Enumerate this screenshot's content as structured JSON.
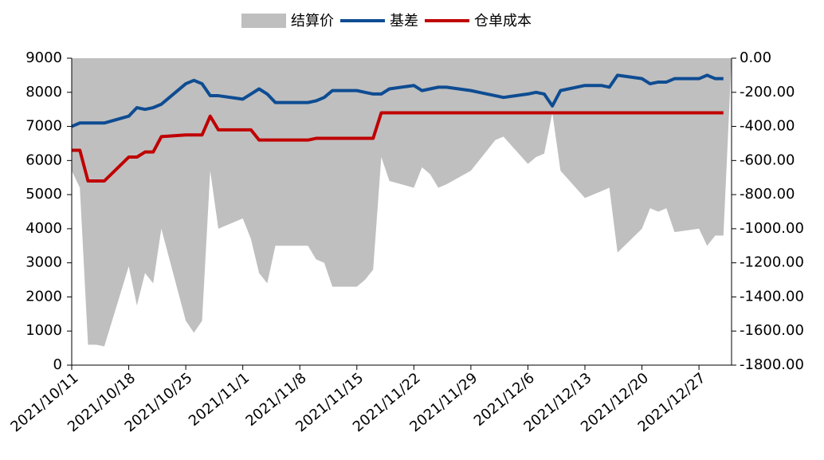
{
  "chart_data": {
    "type": "line",
    "legend": "top",
    "x": [
      "2021/10/11",
      "2021/10/12",
      "2021/10/13",
      "2021/10/14",
      "2021/10/15",
      "2021/10/18",
      "2021/10/19",
      "2021/10/20",
      "2021/10/21",
      "2021/10/22",
      "2021/10/25",
      "2021/10/26",
      "2021/10/27",
      "2021/10/28",
      "2021/10/29",
      "2021/11/1",
      "2021/11/2",
      "2021/11/3",
      "2021/11/4",
      "2021/11/5",
      "2021/11/8",
      "2021/11/9",
      "2021/11/10",
      "2021/11/11",
      "2021/11/12",
      "2021/11/15",
      "2021/11/16",
      "2021/11/17",
      "2021/11/18",
      "2021/11/19",
      "2021/11/22",
      "2021/11/23",
      "2021/11/24",
      "2021/11/25",
      "2021/11/26",
      "2021/11/29",
      "2021/11/30",
      "2021/12/1",
      "2021/12/2",
      "2021/12/3",
      "2021/12/6",
      "2021/12/7",
      "2021/12/8",
      "2021/12/9",
      "2021/12/10",
      "2021/12/13",
      "2021/12/14",
      "2021/12/15",
      "2021/12/16",
      "2021/12/17",
      "2021/12/20",
      "2021/12/21",
      "2021/12/22",
      "2021/12/23",
      "2021/12/24",
      "2021/12/27",
      "2021/12/28",
      "2021/12/29",
      "2021/12/30",
      "2021/12/31"
    ],
    "xlim": [
      "2021/10/11",
      "2021/12/31"
    ],
    "xticks": [
      "2021/10/11",
      "2021/10/18",
      "2021/10/25",
      "2021/11/1",
      "2021/11/8",
      "2021/11/15",
      "2021/11/22",
      "2021/11/29",
      "2021/12/6",
      "2021/12/13",
      "2021/12/20",
      "2021/12/27"
    ],
    "ylim": [
      0,
      9000
    ],
    "yticks": [
      0,
      1000,
      2000,
      3000,
      4000,
      5000,
      6000,
      7000,
      8000,
      9000
    ],
    "y2lim": [
      -1800,
      0
    ],
    "y2ticks": [
      {
        "value": -1800,
        "label": "-1800.00"
      },
      {
        "value": -1600,
        "label": "-1600.00"
      },
      {
        "value": -1400,
        "label": "-1400.00"
      },
      {
        "value": -1200,
        "label": "-1200.00"
      },
      {
        "value": -1000,
        "label": "-1000.00"
      },
      {
        "value": -800,
        "label": "-800.00"
      },
      {
        "value": -600,
        "label": "-600.00"
      },
      {
        "value": -400,
        "label": "-400.00"
      },
      {
        "value": -200,
        "label": "-200.00"
      },
      {
        "value": 0,
        "label": "0.00"
      }
    ],
    "series": [
      {
        "name": "结算价",
        "type": "area",
        "axis": "y2",
        "color": "#bfbfbf",
        "values": [
          -660,
          -760,
          -1680,
          -1680,
          -1690,
          -1220,
          -1450,
          -1260,
          -1320,
          -1000,
          -1540,
          -1610,
          -1540,
          -660,
          -1000,
          -940,
          -1060,
          -1260,
          -1320,
          -1100,
          -1100,
          -1100,
          -1180,
          -1200,
          -1340,
          -1340,
          -1300,
          -1240,
          -580,
          -720,
          -760,
          -640,
          -680,
          -760,
          -740,
          -660,
          -600,
          -540,
          -480,
          -460,
          -620,
          -580,
          -560,
          -320,
          -660,
          -820,
          -800,
          -780,
          -760,
          -1140,
          -1000,
          -880,
          -900,
          -880,
          -1020,
          -1000,
          -1100,
          -1040,
          -1040,
          0
        ]
      },
      {
        "name": "基差",
        "color": "#0e4c92",
        "values": [
          7000,
          7100,
          7100,
          7100,
          7100,
          7300,
          7550,
          7500,
          7550,
          7650,
          8250,
          8350,
          8250,
          7900,
          7900,
          7800,
          7950,
          8100,
          7950,
          7700,
          7700,
          7700,
          7750,
          7850,
          8050,
          8050,
          8000,
          7950,
          7950,
          8100,
          8200,
          8050,
          8100,
          8150,
          8150,
          8050,
          8000,
          7950,
          7900,
          7850,
          7950,
          8000,
          7950,
          7600,
          8050,
          8200,
          8200,
          8200,
          8150,
          8500,
          8400,
          8250,
          8300,
          8300,
          8400,
          8400,
          8500,
          8400,
          8400,
          null
        ]
      },
      {
        "name": "仓单成本",
        "color": "#c00000",
        "values": [
          6300,
          6300,
          5400,
          5400,
          5400,
          6100,
          6100,
          6250,
          6250,
          6700,
          6750,
          6750,
          6750,
          7300,
          6900,
          6900,
          6900,
          6600,
          6600,
          6600,
          6600,
          6600,
          6650,
          6650,
          6650,
          6650,
          6650,
          6650,
          7400,
          7400,
          7400,
          7400,
          7400,
          7400,
          7400,
          7400,
          7400,
          7400,
          7400,
          7400,
          7400,
          7400,
          7400,
          7400,
          7400,
          7400,
          7400,
          7400,
          7400,
          7400,
          7400,
          7400,
          7400,
          7400,
          7400,
          7400,
          7400,
          7400,
          7400,
          null
        ]
      }
    ]
  }
}
